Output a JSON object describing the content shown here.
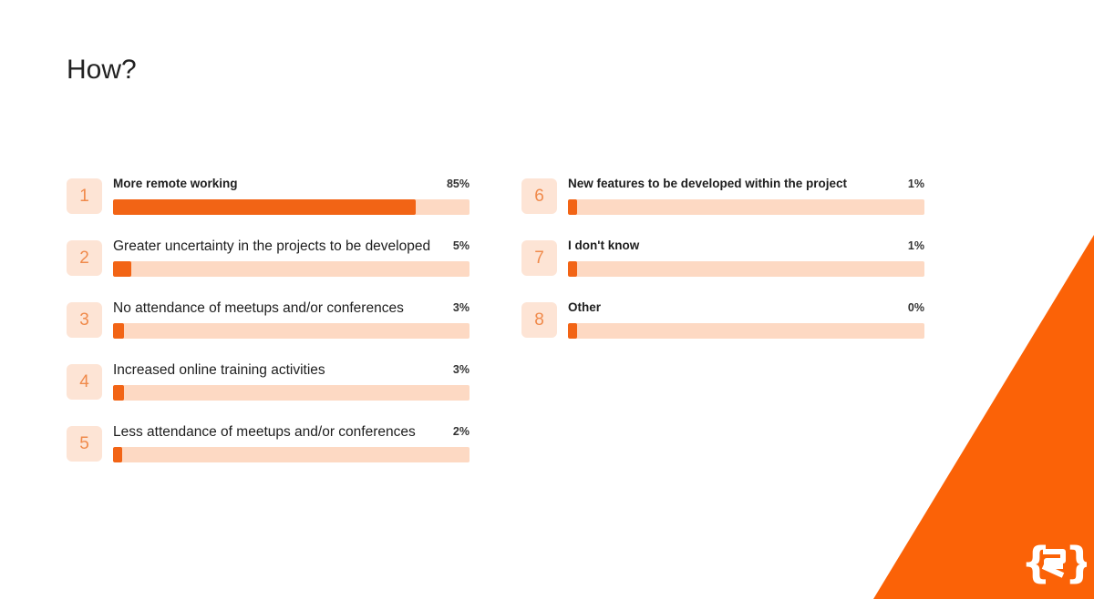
{
  "title": "How?",
  "colors": {
    "accent": "#f26415",
    "track": "#fdd9c3",
    "badge_bg": "#fde4d5",
    "badge_text": "#f08a4b"
  },
  "logo_icon": "curly-brace-logo-icon",
  "chart_data": {
    "type": "bar",
    "orientation": "horizontal",
    "xlim": [
      0,
      100
    ],
    "items": [
      {
        "rank": "1",
        "label": "More remote working",
        "value": 85,
        "value_label": "85%",
        "column": "left",
        "bold": true
      },
      {
        "rank": "2",
        "label": "Greater uncertainty in the projects to be developed",
        "value": 5,
        "value_label": "5%",
        "column": "left",
        "bold": false
      },
      {
        "rank": "3",
        "label": "No attendance of meetups and/or conferences",
        "value": 3,
        "value_label": "3%",
        "column": "left",
        "bold": false
      },
      {
        "rank": "4",
        "label": "Increased online training activities",
        "value": 3,
        "value_label": "3%",
        "column": "left",
        "bold": false
      },
      {
        "rank": "5",
        "label": "Less attendance of meetups and/or conferences",
        "value": 2,
        "value_label": "2%",
        "column": "left",
        "bold": false
      },
      {
        "rank": "6",
        "label": "New features to be developed within the project",
        "value": 1,
        "value_label": "1%",
        "column": "right",
        "bold": true
      },
      {
        "rank": "7",
        "label": "I don't know",
        "value": 1,
        "value_label": "1%",
        "column": "right",
        "bold": true
      },
      {
        "rank": "8",
        "label": "Other",
        "value": 0,
        "value_label": "0%",
        "column": "right",
        "bold": true
      }
    ]
  }
}
